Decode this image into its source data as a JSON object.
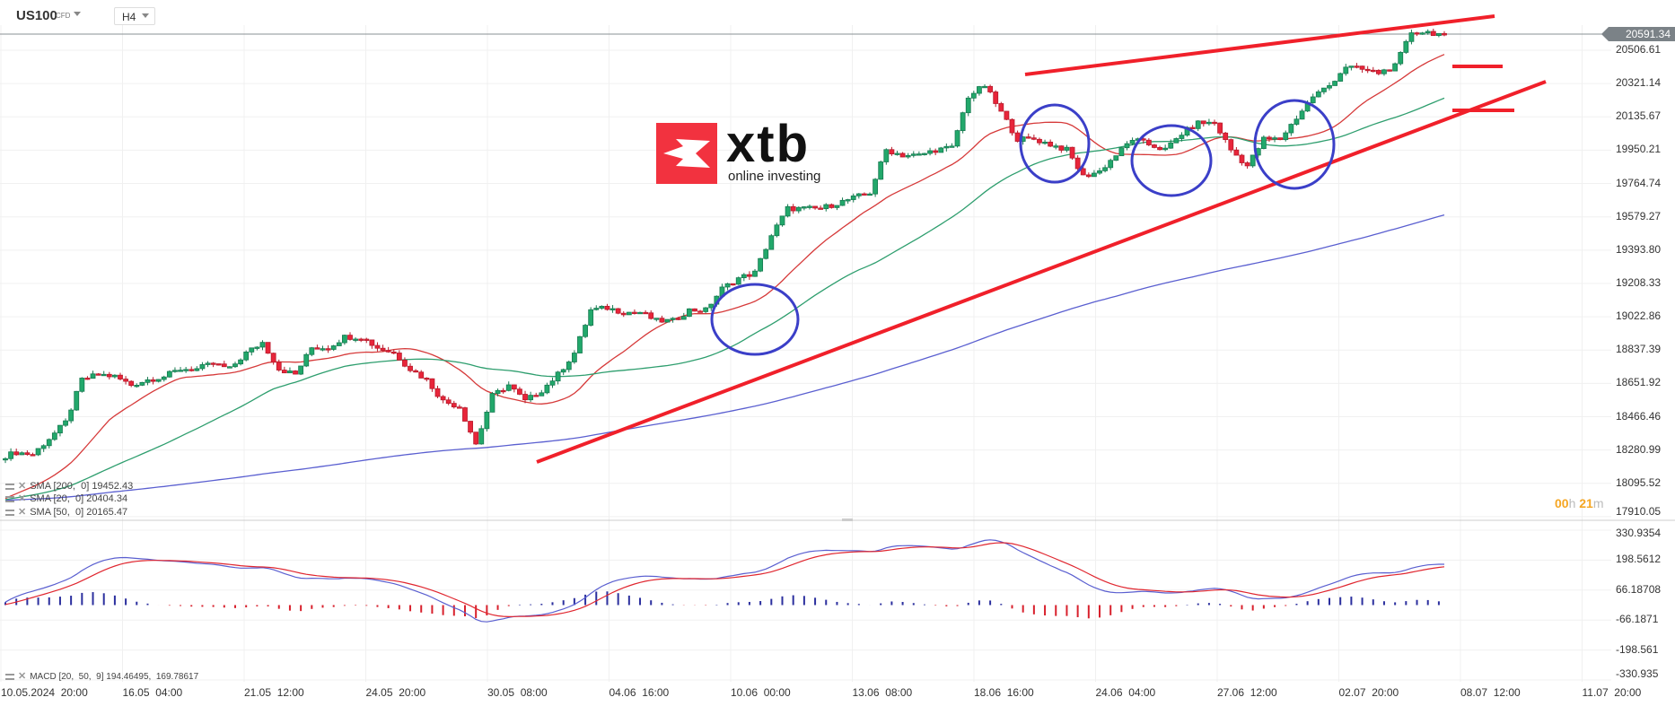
{
  "header": {
    "symbol": "US100",
    "instrument_type": "CFD",
    "timeframe": "H4"
  },
  "current_price_label": "20591.34",
  "countdown": {
    "hours": "00",
    "h": "h",
    "minutes": "21",
    "m": "m"
  },
  "logo": {
    "brand": "xtb",
    "tagline": "online investing"
  },
  "indicators": [
    {
      "label": "SMA [200,  0] 19452.43",
      "color": "#5a5fd0"
    },
    {
      "label": "SMA [20,  0] 20404.34",
      "color": "#d63a3a"
    },
    {
      "label": "SMA [50,  0] 20165.47",
      "color": "#2e9e6e"
    }
  ],
  "macd_legend": "MACD [20,  50,  9] 194.46495,  169.78617",
  "colors": {
    "up": "#22a86b",
    "up_border": "#167a50",
    "down": "#e8253a",
    "down_border": "#b81a2b",
    "trendline": "#f0202a",
    "circle": "#3b3fc8",
    "macd": "#5a5fd0",
    "signal": "#e0262f",
    "hist_pos": "#2b2f9e",
    "hist_neg": "#d8202c"
  },
  "chart_data": {
    "type": "candlestick",
    "symbol": "US100",
    "timeframe": "H4",
    "x_tick_labels": [
      "10.05.2024  20:00",
      "16.05  04:00",
      "21.05  12:00",
      "24.05  20:00",
      "30.05  08:00",
      "04.06  16:00",
      "10.06  00:00",
      "13.06  08:00",
      "18.06  16:00",
      "24.06  04:00",
      "27.06  12:00",
      "02.07  20:00",
      "08.07  12:00",
      "11.07  20:00"
    ],
    "y_ticks": [
      "20506.61",
      "20321.14",
      "20135.67",
      "19950.21",
      "19764.74",
      "19579.27",
      "19393.80",
      "19208.33",
      "19022.86",
      "18837.39",
      "18651.92",
      "18466.46",
      "18280.99",
      "18095.52",
      "17910.05"
    ],
    "ylim": [
      17910.05,
      20591.34
    ],
    "close_samples": [
      18238,
      18268,
      18256,
      18345,
      18434,
      18672,
      18702,
      18690,
      18643,
      18672,
      18690,
      18732,
      18732,
      18762,
      18732,
      18821,
      18880,
      18732,
      18702,
      18851,
      18851,
      18911,
      18911,
      18851,
      18821,
      18732,
      18672,
      18553,
      18523,
      18315,
      18583,
      18643,
      18553,
      18613,
      18702,
      18821,
      19060,
      19072,
      19048,
      19048,
      19000,
      19000,
      19060,
      19060,
      19179,
      19238,
      19268,
      19476,
      19625,
      19625,
      19625,
      19655,
      19684,
      19714,
      19952,
      19922,
      19922,
      19952,
      19964,
      20250,
      20310,
      20161,
      20012,
      20012,
      19982,
      19952,
      19804,
      19833,
      19923,
      20012,
      19982,
      19952,
      20042,
      20102,
      20102,
      19952,
      19863,
      20012,
      20012,
      20131,
      20250,
      20310,
      20417,
      20399,
      20381,
      20417,
      20608,
      20608,
      20591.34
    ],
    "last_price": 20591.34,
    "sma": [
      {
        "period": 200,
        "last": 19452.43
      },
      {
        "period": 20,
        "last": 20404.34
      },
      {
        "period": 50,
        "last": 20165.47
      }
    ],
    "macd": {
      "params": [
        20,
        50,
        9
      ],
      "last_macd": 194.46495,
      "last_signal": 169.78617,
      "y_ticks": [
        "330.9354",
        "198.5612",
        "66.18708",
        "-66.1871",
        "-198.561",
        "-330.935"
      ],
      "ylim": [
        -330.935,
        330.9354
      ]
    }
  }
}
